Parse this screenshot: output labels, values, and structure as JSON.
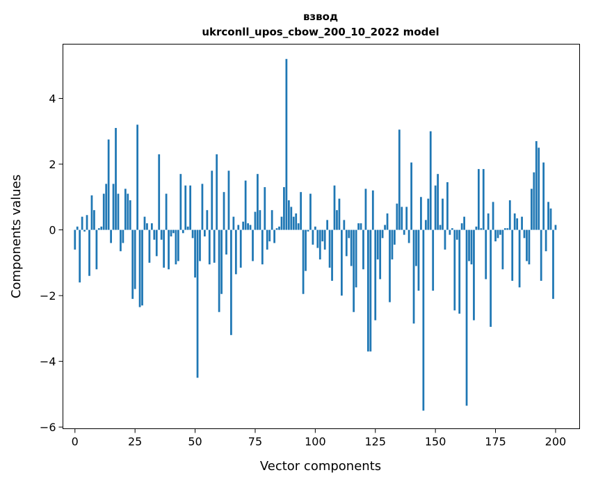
{
  "chart_data": {
    "type": "bar",
    "title": "взвод",
    "subtitle": "ukrconll_upos_cbow_200_10_2022 model",
    "xlabel": "Vector components",
    "ylabel": "Components values",
    "xlim": [
      -5,
      210
    ],
    "ylim": [
      -6.05,
      5.65
    ],
    "xticks": [
      0,
      25,
      50,
      75,
      100,
      125,
      150,
      175,
      200
    ],
    "xtick_labels": [
      "0",
      "25",
      "50",
      "75",
      "100",
      "125",
      "150",
      "175",
      "200"
    ],
    "yticks": [
      -6,
      -4,
      -2,
      0,
      2,
      4
    ],
    "ytick_labels": [
      "−6",
      "−4",
      "−2",
      "0",
      "2",
      "4"
    ],
    "grid": false,
    "legend": "none",
    "bar_color": "#1f77b4",
    "values": [
      -0.6,
      0.1,
      -1.6,
      0.4,
      -0.05,
      0.45,
      -1.4,
      1.05,
      0.6,
      -1.2,
      0.05,
      0.1,
      1.1,
      1.4,
      2.75,
      -0.4,
      1.4,
      3.1,
      1.1,
      -0.65,
      -0.4,
      1.25,
      1.1,
      0.9,
      -2.1,
      -1.8,
      3.2,
      -2.35,
      -2.3,
      0.4,
      0.2,
      -1.0,
      0.2,
      -0.3,
      -0.8,
      2.3,
      -0.3,
      -1.15,
      1.1,
      -1.2,
      -0.2,
      -0.1,
      -1.05,
      -0.95,
      1.7,
      -0.1,
      1.35,
      0.1,
      1.35,
      -0.25,
      -1.45,
      -4.5,
      -0.95,
      1.4,
      -0.2,
      0.6,
      -1.05,
      1.8,
      -1.0,
      2.3,
      -2.5,
      -1.95,
      1.15,
      -0.75,
      1.8,
      -3.2,
      0.4,
      -1.35,
      0.15,
      -1.15,
      0.25,
      1.5,
      0.2,
      0.15,
      -0.95,
      0.55,
      1.7,
      0.6,
      -1.05,
      1.3,
      -0.6,
      -0.35,
      0.6,
      -0.4,
      0.05,
      0.1,
      0.4,
      1.3,
      5.2,
      0.9,
      0.7,
      0.4,
      0.5,
      0.2,
      1.15,
      -1.95,
      -1.25,
      -0.05,
      1.1,
      -0.45,
      0.1,
      -0.55,
      -0.9,
      -0.35,
      -0.6,
      0.3,
      -1.15,
      -1.55,
      1.35,
      0.6,
      0.95,
      -2.0,
      0.3,
      -0.8,
      -0.25,
      -1.1,
      -2.5,
      -1.75,
      0.2,
      0.2,
      -1.2,
      1.25,
      -3.7,
      -3.7,
      1.2,
      -2.75,
      -0.9,
      -1.5,
      -0.25,
      0.15,
      0.5,
      -2.2,
      -0.9,
      -0.45,
      0.8,
      3.05,
      0.7,
      -0.15,
      0.7,
      -0.4,
      2.05,
      -2.85,
      -1.1,
      -1.85,
      1.0,
      -5.5,
      0.3,
      0.95,
      3.0,
      -1.85,
      1.35,
      1.7,
      0.15,
      0.95,
      -0.6,
      1.45,
      -0.15,
      0.05,
      -2.45,
      -0.3,
      -2.55,
      0.2,
      0.4,
      -5.35,
      -0.95,
      -1.05,
      -2.75,
      0.1,
      1.85,
      0.05,
      1.85,
      -1.5,
      0.5,
      -2.95,
      0.85,
      -0.35,
      -0.25,
      -0.15,
      -1.2,
      0.05,
      0.05,
      0.9,
      -1.55,
      0.5,
      0.35,
      -1.75,
      0.4,
      -0.25,
      -0.95,
      -1.05,
      1.25,
      1.75,
      2.7,
      2.5,
      -1.55,
      2.05,
      -0.65,
      0.85,
      0.65,
      -2.1,
      0.15
    ]
  }
}
